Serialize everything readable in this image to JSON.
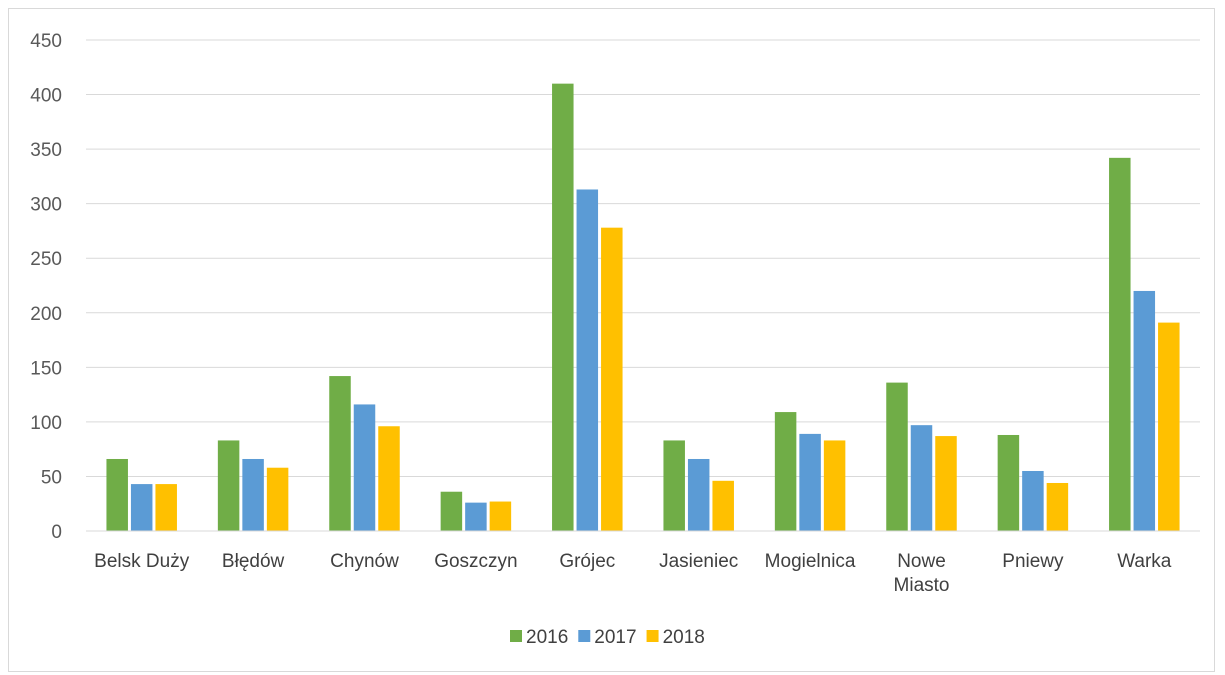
{
  "chart_data": {
    "type": "bar",
    "categories": [
      "Belsk Duży",
      "Błędów",
      "Chynów",
      "Goszczyn",
      "Grójec",
      "Jasieniec",
      "Mogielnica",
      "Nowe Miasto",
      "Pniewy",
      "Warka"
    ],
    "series": [
      {
        "name": "2016",
        "color": "#70AD47",
        "values": [
          66,
          83,
          142,
          36,
          410,
          83,
          109,
          136,
          88,
          342
        ]
      },
      {
        "name": "2017",
        "color": "#5B9BD5",
        "values": [
          43,
          66,
          116,
          26,
          313,
          66,
          89,
          97,
          55,
          220
        ]
      },
      {
        "name": "2018",
        "color": "#FFC000",
        "values": [
          43,
          58,
          96,
          27,
          278,
          46,
          83,
          87,
          44,
          191
        ]
      }
    ],
    "ylim": [
      0,
      450
    ],
    "yticks": [
      0,
      50,
      100,
      150,
      200,
      250,
      300,
      350,
      400,
      450
    ],
    "grid": true,
    "legend_position": "bottom"
  }
}
